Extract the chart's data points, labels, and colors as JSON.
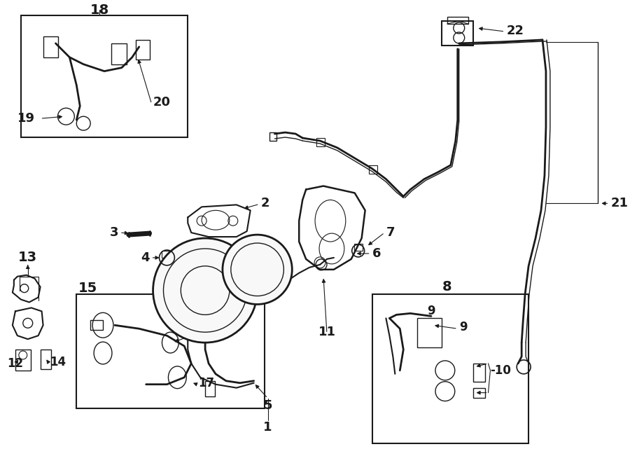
{
  "bg_color": "#ffffff",
  "line_color": "#1a1a1a",
  "fig_width": 9.0,
  "fig_height": 6.61,
  "dpi": 100,
  "lw": 1.2
}
